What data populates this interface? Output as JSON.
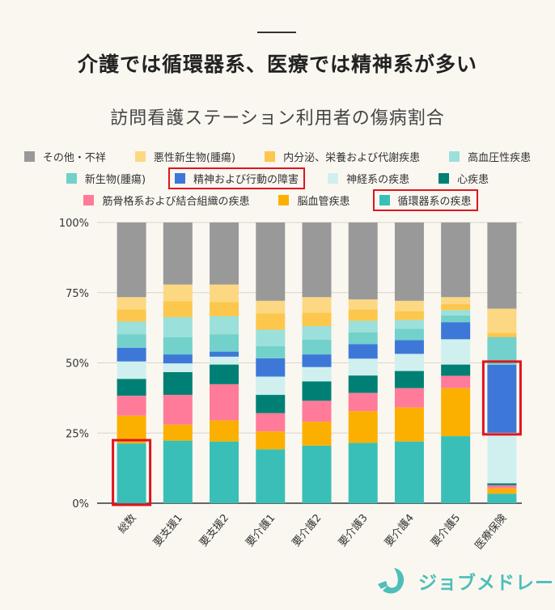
{
  "header": {
    "title": "介護では循環器系、医療では精神系が多い",
    "subtitle": "訪問看護ステーション利用者の傷病割合"
  },
  "brand": {
    "name": "ジョブメドレー",
    "color": "#4cbfb8"
  },
  "chart_data": {
    "type": "bar",
    "stacked": true,
    "normalized": true,
    "title": "訪問看護ステーション利用者の傷病割合",
    "xlabel": "",
    "ylabel": "",
    "ylim": [
      0,
      100
    ],
    "yticks": [
      "0%",
      "25%",
      "50%",
      "75%",
      "100%"
    ],
    "grid": true,
    "legend_position": "top",
    "categories": [
      "総数",
      "要支援1",
      "要支援2",
      "要介護1",
      "要介護2",
      "要介護3",
      "要介護4",
      "要介護5",
      "医療保険"
    ],
    "series": [
      {
        "name": "循環器系の疾患",
        "color": "#39bfb8",
        "values": [
          21.3,
          22.3,
          22.0,
          19.2,
          20.5,
          21.5,
          22.0,
          23.9,
          3.4
        ]
      },
      {
        "name": "脳血管疾患",
        "color": "#fbb000",
        "values": [
          9.9,
          5.7,
          7.5,
          6.4,
          8.5,
          11.3,
          12.1,
          17.1,
          1.9
        ]
      },
      {
        "name": "筋骨格系および結合組織の疾患",
        "color": "#ff7b99",
        "values": [
          7.1,
          10.6,
          12.9,
          6.5,
          7.5,
          6.5,
          6.9,
          4.4,
          1.1
        ]
      },
      {
        "name": "心疾患",
        "color": "#008075",
        "values": [
          6.0,
          8.1,
          7.0,
          6.5,
          6.9,
          6.2,
          6.1,
          4.0,
          0.7
        ]
      },
      {
        "name": "神経系の疾患",
        "color": "#cff0ee",
        "values": [
          6.2,
          3.1,
          2.8,
          6.5,
          5.1,
          6.0,
          6.1,
          9.0,
          18.0
        ]
      },
      {
        "name": "精神および行動の障害",
        "color": "#3d78d8",
        "values": [
          4.9,
          3.2,
          1.8,
          6.5,
          4.5,
          5.2,
          4.9,
          6.1,
          24.2
        ]
      },
      {
        "name": "新生物(腫瘍)",
        "color": "#72d1cb",
        "values": [
          4.8,
          6.1,
          6.2,
          4.4,
          5.3,
          4.1,
          4.0,
          2.4,
          9.9
        ]
      },
      {
        "name": "高血圧性疾患",
        "color": "#9be0da",
        "values": [
          4.5,
          7.2,
          6.4,
          5.8,
          4.8,
          4.2,
          3.2,
          1.9,
          0.0
        ]
      },
      {
        "name": "内分泌、栄養および代謝疾患",
        "color": "#fcc74c",
        "values": [
          4.3,
          5.6,
          5.1,
          5.8,
          4.8,
          4.0,
          3.0,
          2.1,
          1.5
        ]
      },
      {
        "name": "悪性新生物(腫瘍)",
        "color": "#fdd882",
        "values": [
          4.4,
          6.0,
          6.2,
          4.5,
          5.5,
          3.6,
          3.8,
          2.5,
          8.6
        ]
      },
      {
        "name": "その他・不祥",
        "color": "#999999",
        "values": [
          26.6,
          22.1,
          22.1,
          27.9,
          26.6,
          27.4,
          27.9,
          26.6,
          30.7
        ]
      }
    ],
    "legend_order": [
      "その他・不祥",
      "悪性新生物(腫瘍)",
      "内分泌、栄養および代謝疾患",
      "高血圧性疾患",
      "新生物(腫瘍)",
      "精神および行動の障害",
      "神経系の疾患",
      "心疾患",
      "筋骨格系および結合組織の疾患",
      "脳血管疾患",
      "循環器系の疾患"
    ],
    "highlighted_legend": [
      "精神および行動の障害",
      "循環器系の疾患"
    ],
    "highlighted_segments": [
      {
        "category": "総数",
        "series": "循環器系の疾患"
      },
      {
        "category": "医療保険",
        "series": "精神および行動の障害"
      }
    ],
    "highlight_color": "#e0141c"
  }
}
